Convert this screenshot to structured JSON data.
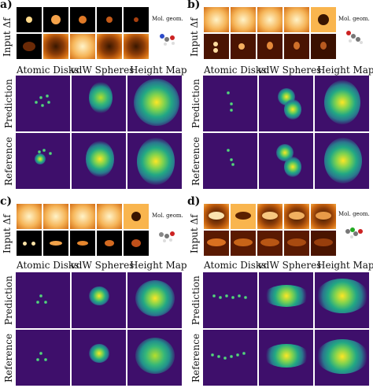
{
  "panels": [
    {
      "label": "a)"
    },
    {
      "label": "b)"
    },
    {
      "label": "c)"
    },
    {
      "label": "d)"
    }
  ],
  "input_label": "Input Δf",
  "mol_geom_label": "Mol. geom.",
  "columns": [
    "Atomic Disks",
    "vdW Spheres",
    "Height Map"
  ],
  "rows": [
    "Prediction",
    "Reference"
  ]
}
